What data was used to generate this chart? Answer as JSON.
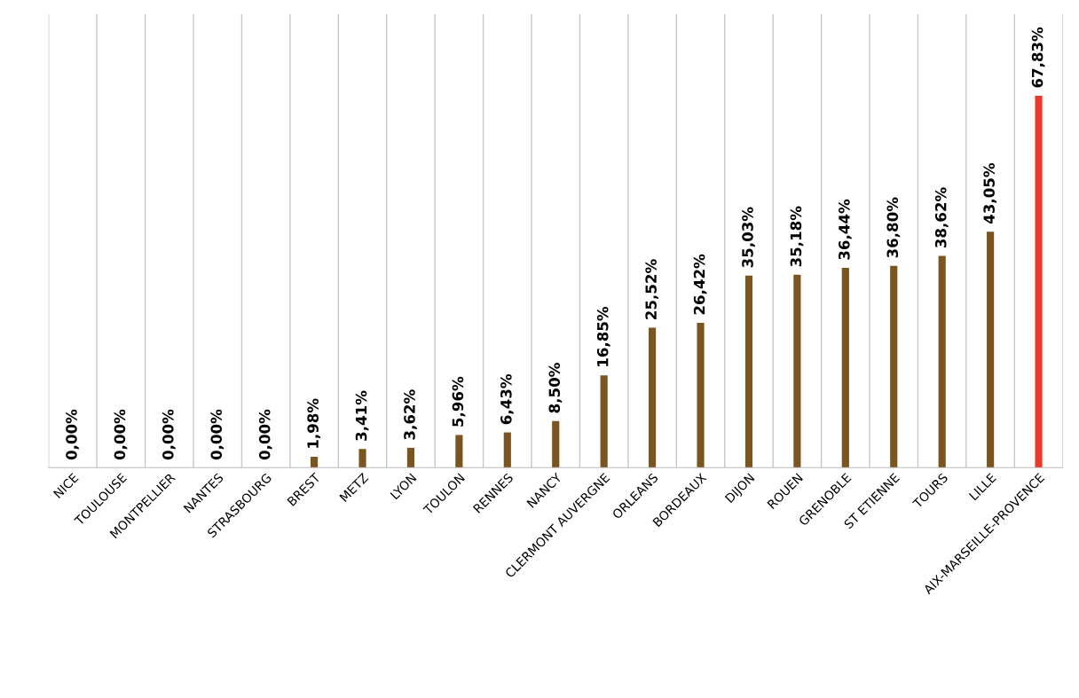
{
  "chart_data": {
    "type": "bar",
    "categories": [
      "NICE",
      "TOULOUSE",
      "MONTPELLIER",
      "NANTES",
      "STRASBOURG",
      "BREST",
      "METZ",
      "LYON",
      "TOULON",
      "RENNES",
      "NANCY",
      "CLERMONT AUVERGNE",
      "ORLEANS",
      "BORDEAUX",
      "DIJON",
      "ROUEN",
      "GRENOBLE",
      "ST ETIENNE",
      "TOURS",
      "LILLE",
      "AIX-MARSEILLE-PROVENCE"
    ],
    "values": [
      0,
      0,
      0,
      0,
      0,
      1.98,
      3.41,
      3.62,
      5.96,
      6.43,
      8.5,
      16.85,
      25.52,
      26.42,
      35.03,
      35.18,
      36.44,
      36.8,
      38.62,
      43.05,
      67.83
    ],
    "value_labels": [
      "0,00%",
      "0,00%",
      "0,00%",
      "0,00%",
      "0,00%",
      "1,98%",
      "3,41%",
      "3,62%",
      "5,96%",
      "6,43%",
      "8,50%",
      "16,85%",
      "25,52%",
      "26,42%",
      "35,03%",
      "35,18%",
      "36,44%",
      "36,80%",
      "38,62%",
      "43,05%",
      "67,83%"
    ],
    "colors": [
      "#7a5520",
      "#7a5520",
      "#7a5520",
      "#7a5520",
      "#7a5520",
      "#7a5520",
      "#7a5520",
      "#7a5520",
      "#7a5520",
      "#7a5520",
      "#7a5520",
      "#7a5520",
      "#7a5520",
      "#7a5520",
      "#7a5520",
      "#7a5520",
      "#7a5520",
      "#7a5520",
      "#7a5520",
      "#7a5520",
      "#e8392b"
    ],
    "grid": "x",
    "tick_labels": "x"
  }
}
